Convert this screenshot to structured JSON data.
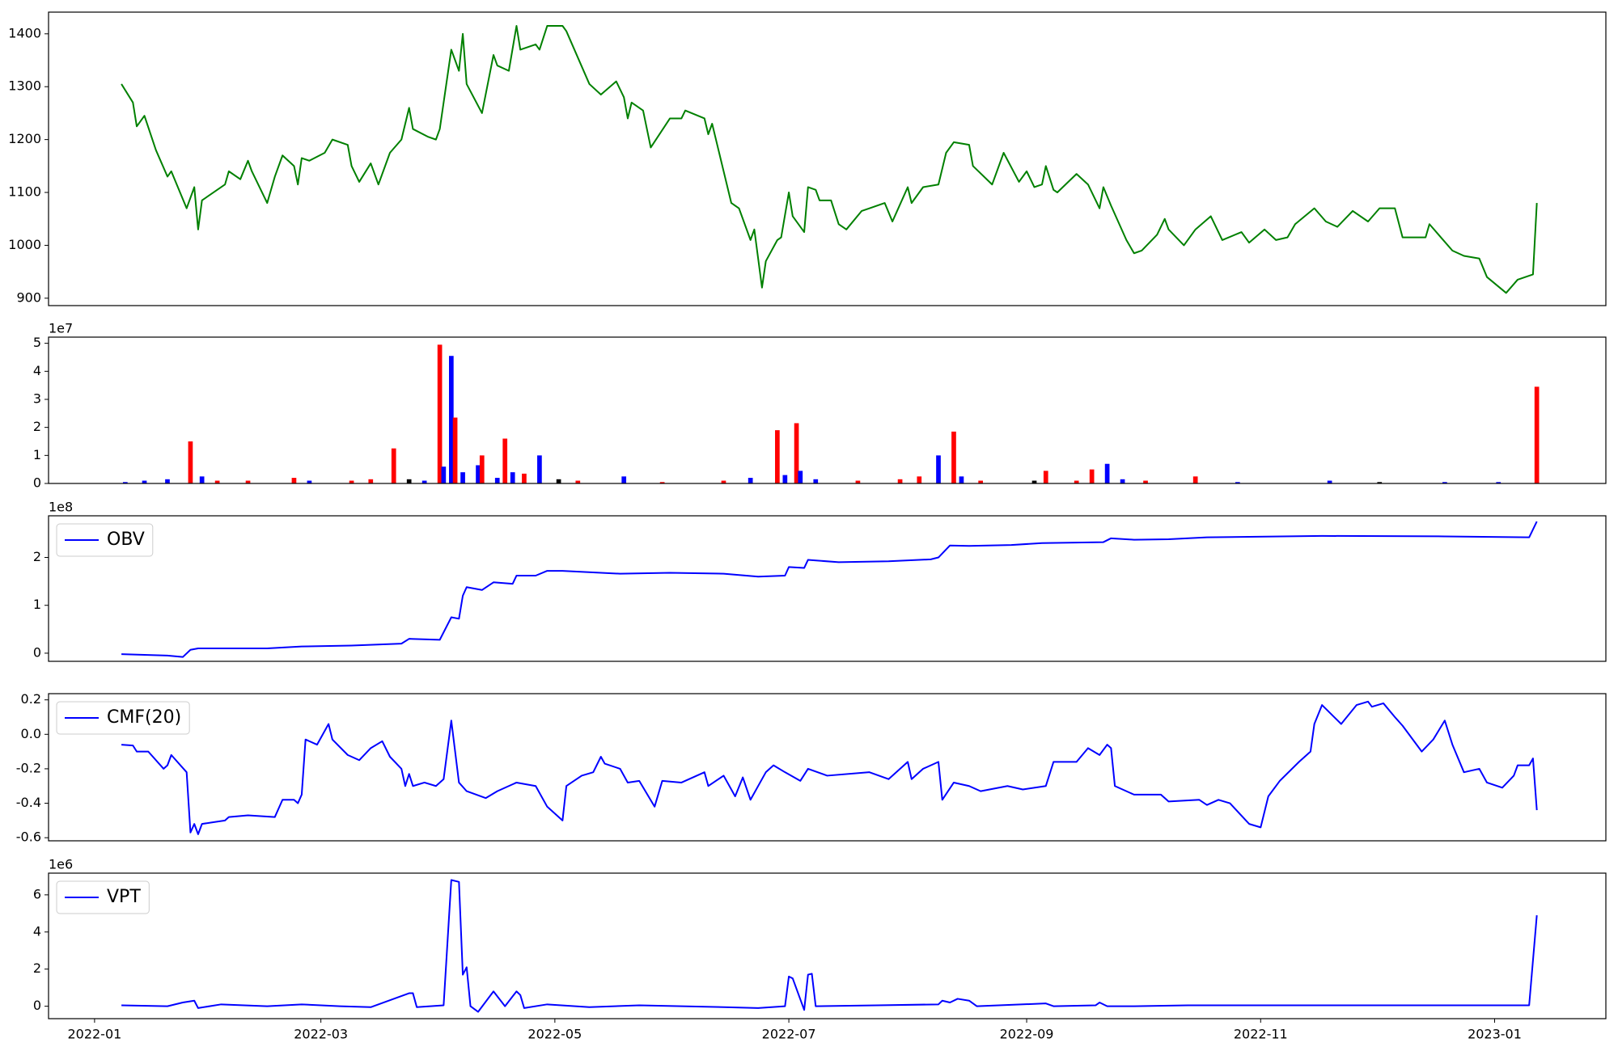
{
  "chart_data": [
    {
      "type": "line",
      "x": [
        7,
        10,
        11,
        13,
        16,
        19,
        20,
        24,
        26,
        27,
        28,
        34,
        35,
        38,
        40,
        41,
        45,
        47,
        49,
        52,
        53,
        54,
        56,
        60,
        62,
        66,
        67,
        69,
        72,
        74,
        77,
        80,
        82,
        83,
        87,
        89,
        90,
        93,
        95,
        96,
        97,
        101,
        104,
        105,
        108,
        110,
        111,
        115,
        116,
        118,
        122,
        123,
        129,
        132,
        136,
        138,
        139,
        140,
        143,
        145,
        150,
        153,
        154,
        159,
        160,
        161,
        164,
        166,
        168,
        171,
        172,
        174,
        175,
        178,
        179,
        181,
        182,
        185,
        186,
        188,
        189,
        192,
        194,
        196,
        200,
        202,
        206,
        208,
        212,
        213,
        216,
        220,
        222,
        224,
        228,
        229,
        234,
        237,
        241,
        243,
        245,
        247,
        248,
        250,
        251,
        256,
        259,
        262,
        263,
        265,
        269,
        271,
        273,
        277,
        279,
        280,
        284,
        287,
        291,
        294,
        299,
        301,
        305,
        308,
        311,
        313,
        318,
        321,
        324,
        328,
        332,
        335,
        339,
        341,
        347,
        348,
        354,
        357,
        361,
        363,
        368,
        371,
        375,
        376
      ],
      "series": [
        {
          "color": "#008000",
          "values": [
            1305,
            1270,
            1225,
            1245,
            1180,
            1130,
            1140,
            1070,
            1110,
            1030,
            1085,
            1115,
            1140,
            1125,
            1160,
            1140,
            1080,
            1130,
            1170,
            1150,
            1115,
            1165,
            1160,
            1175,
            1200,
            1190,
            1150,
            1120,
            1155,
            1115,
            1175,
            1200,
            1260,
            1220,
            1205,
            1200,
            1220,
            1370,
            1330,
            1400,
            1305,
            1250,
            1360,
            1340,
            1330,
            1415,
            1370,
            1380,
            1370,
            1415,
            1415,
            1405,
            1305,
            1285,
            1310,
            1280,
            1240,
            1270,
            1255,
            1185,
            1240,
            1240,
            1255,
            1240,
            1210,
            1230,
            1140,
            1080,
            1070,
            1010,
            1030,
            920,
            970,
            1010,
            1015,
            1100,
            1055,
            1025,
            1110,
            1105,
            1085,
            1085,
            1040,
            1030,
            1065,
            1070,
            1080,
            1045,
            1110,
            1080,
            1110,
            1115,
            1175,
            1195,
            1190,
            1150,
            1115,
            1175,
            1120,
            1140,
            1110,
            1115,
            1150,
            1105,
            1100,
            1135,
            1115,
            1070,
            1110,
            1075,
            1010,
            985,
            990,
            1020,
            1050,
            1030,
            1000,
            1030,
            1055,
            1010,
            1025,
            1005,
            1030,
            1010,
            1015,
            1040,
            1070,
            1045,
            1035,
            1065,
            1045,
            1070,
            1070,
            1015,
            1015,
            1040,
            990,
            980,
            975,
            940,
            910,
            935,
            945,
            1080
          ]
        }
      ],
      "xlim": [
        -12,
        394
      ],
      "ylim": [
        886,
        1441
      ],
      "yticks": [
        900,
        1000,
        1100,
        1200,
        1300,
        1400
      ]
    },
    {
      "type": "bar",
      "offset_label": "1e7",
      "x": [
        8,
        13,
        19,
        25,
        28,
        32,
        40,
        52,
        56,
        67,
        72,
        78,
        82,
        86,
        90,
        91,
        93,
        94,
        96,
        100,
        101,
        105,
        107,
        109,
        112,
        116,
        121,
        126,
        138,
        148,
        164,
        171,
        178,
        180,
        183,
        184,
        188,
        199,
        210,
        215,
        220,
        224,
        226,
        231,
        245,
        248,
        256,
        260,
        264,
        268,
        274,
        287,
        298,
        322,
        335,
        352,
        366,
        376
      ],
      "values": [
        0.05,
        0.1,
        0.15,
        1.5,
        0.25,
        0.1,
        0.1,
        0.2,
        0.1,
        0.1,
        0.15,
        1.25,
        0.15,
        0.1,
        4.95,
        0.6,
        4.55,
        2.35,
        0.4,
        0.65,
        1.0,
        0.2,
        1.6,
        0.4,
        0.35,
        1.0,
        0.15,
        0.1,
        0.25,
        0.05,
        0.1,
        0.2,
        1.9,
        0.3,
        2.15,
        0.45,
        0.15,
        0.1,
        0.15,
        0.25,
        1.0,
        1.85,
        0.25,
        0.1,
        0.1,
        0.45,
        0.1,
        0.5,
        0.7,
        0.15,
        0.1,
        0.25,
        0.05,
        0.1,
        0.05,
        0.05,
        0.05,
        3.45
      ],
      "colors": [
        "blue",
        "blue",
        "blue",
        "red",
        "blue",
        "red",
        "red",
        "red",
        "blue",
        "red",
        "red",
        "red",
        "black",
        "blue",
        "red",
        "blue",
        "blue",
        "red",
        "blue",
        "blue",
        "red",
        "blue",
        "red",
        "blue",
        "red",
        "blue",
        "black",
        "red",
        "blue",
        "red",
        "red",
        "blue",
        "red",
        "blue",
        "red",
        "blue",
        "blue",
        "red",
        "red",
        "red",
        "blue",
        "red",
        "blue",
        "red",
        "black",
        "red",
        "red",
        "red",
        "blue",
        "blue",
        "red",
        "red",
        "blue",
        "blue",
        "black",
        "blue",
        "blue",
        "red"
      ],
      "xlim": [
        -12,
        394
      ],
      "ylim": [
        0,
        5.22
      ],
      "yticks": [
        0,
        1,
        2,
        3,
        4,
        5
      ]
    },
    {
      "type": "line",
      "offset_label": "1e8",
      "x": [
        7,
        19,
        23,
        25,
        27,
        45,
        54,
        67,
        80,
        82,
        90,
        93,
        95,
        96,
        97,
        101,
        104,
        109,
        110,
        115,
        118,
        122,
        137,
        150,
        164,
        173,
        180,
        181,
        185,
        186,
        194,
        207,
        218,
        220,
        223,
        228,
        239,
        247,
        263,
        265,
        271,
        280,
        290,
        320,
        352,
        374,
        376
      ],
      "series": [
        {
          "name": "OBV",
          "color": "#0000ff",
          "values": [
            -0.02,
            -0.05,
            -0.08,
            0.07,
            0.1,
            0.1,
            0.14,
            0.16,
            0.2,
            0.3,
            0.28,
            0.75,
            0.72,
            1.2,
            1.38,
            1.32,
            1.48,
            1.45,
            1.62,
            1.62,
            1.72,
            1.72,
            1.66,
            1.68,
            1.66,
            1.6,
            1.62,
            1.8,
            1.78,
            1.95,
            1.9,
            1.92,
            1.96,
            2.0,
            2.25,
            2.24,
            2.26,
            2.3,
            2.32,
            2.4,
            2.37,
            2.38,
            2.42,
            2.45,
            2.44,
            2.42,
            2.75
          ]
        }
      ],
      "xlim": [
        -12,
        394
      ],
      "ylim": [
        -0.17,
        2.87
      ],
      "yticks": [
        0,
        1,
        2
      ],
      "legend": "upper left"
    },
    {
      "type": "line",
      "x": [
        7,
        10,
        11,
        14,
        18,
        19,
        20,
        24,
        25,
        26,
        27,
        28,
        34,
        35,
        40,
        47,
        49,
        52,
        53,
        54,
        55,
        58,
        61,
        62,
        66,
        69,
        72,
        75,
        77,
        80,
        81,
        82,
        83,
        86,
        89,
        91,
        93,
        95,
        97,
        102,
        105,
        110,
        115,
        118,
        122,
        123,
        127,
        130,
        132,
        133,
        137,
        139,
        142,
        146,
        148,
        153,
        159,
        160,
        164,
        167,
        169,
        171,
        175,
        177,
        180,
        184,
        186,
        191,
        202,
        207,
        212,
        213,
        216,
        220,
        221,
        224,
        228,
        231,
        238,
        242,
        248,
        250,
        256,
        259,
        262,
        264,
        265,
        266,
        271,
        278,
        280,
        288,
        290,
        293,
        296,
        301,
        304,
        306,
        309,
        314,
        317,
        318,
        320,
        325,
        329,
        332,
        333,
        336,
        339,
        341,
        346,
        349,
        352,
        354,
        357,
        361,
        363,
        367,
        370,
        371,
        374,
        375,
        376
      ],
      "series": [
        {
          "name": "CMF(20)",
          "color": "#0000ff",
          "values": [
            -0.06,
            -0.065,
            -0.1,
            -0.1,
            -0.2,
            -0.18,
            -0.12,
            -0.22,
            -0.57,
            -0.52,
            -0.58,
            -0.52,
            -0.5,
            -0.48,
            -0.47,
            -0.48,
            -0.38,
            -0.38,
            -0.4,
            -0.35,
            -0.03,
            -0.06,
            0.06,
            -0.03,
            -0.12,
            -0.15,
            -0.08,
            -0.04,
            -0.13,
            -0.2,
            -0.3,
            -0.23,
            -0.3,
            -0.28,
            -0.3,
            -0.26,
            0.08,
            -0.28,
            -0.33,
            -0.37,
            -0.33,
            -0.28,
            -0.3,
            -0.42,
            -0.5,
            -0.3,
            -0.24,
            -0.22,
            -0.13,
            -0.17,
            -0.2,
            -0.28,
            -0.27,
            -0.42,
            -0.27,
            -0.28,
            -0.22,
            -0.3,
            -0.24,
            -0.36,
            -0.25,
            -0.38,
            -0.22,
            -0.18,
            -0.22,
            -0.27,
            -0.2,
            -0.24,
            -0.22,
            -0.26,
            -0.16,
            -0.26,
            -0.2,
            -0.16,
            -0.38,
            -0.28,
            -0.3,
            -0.33,
            -0.3,
            -0.32,
            -0.3,
            -0.16,
            -0.16,
            -0.08,
            -0.12,
            -0.06,
            -0.08,
            -0.3,
            -0.35,
            -0.35,
            -0.39,
            -0.38,
            -0.41,
            -0.38,
            -0.4,
            -0.52,
            -0.54,
            -0.36,
            -0.27,
            -0.16,
            -0.1,
            0.06,
            0.17,
            0.06,
            0.17,
            0.19,
            0.16,
            0.18,
            0.1,
            0.05,
            -0.1,
            -0.03,
            0.08,
            -0.06,
            -0.22,
            -0.2,
            -0.28,
            -0.31,
            -0.24,
            -0.18,
            -0.18,
            -0.14,
            -0.44
          ]
        }
      ],
      "xlim": [
        -12,
        394
      ],
      "ylim": [
        -0.618,
        0.236
      ],
      "yticks": [
        -0.6,
        -0.4,
        -0.2,
        {
          "value": 0,
          "label": "0.0"
        },
        0.2
      ],
      "legend": "upper left"
    },
    {
      "type": "line",
      "offset_label": "1e6",
      "x": [
        7,
        19,
        23,
        26,
        27,
        33,
        45,
        54,
        64,
        72,
        82,
        83,
        84,
        91,
        93,
        95,
        96,
        97,
        98,
        100,
        104,
        107,
        110,
        111,
        112,
        118,
        129,
        142,
        164,
        173,
        180,
        181,
        182,
        185,
        186,
        187,
        188,
        204,
        220,
        221,
        223,
        225,
        228,
        230,
        248,
        250,
        261,
        262,
        264,
        271,
        285,
        325,
        374,
        376
      ],
      "series": [
        {
          "name": "VPT",
          "color": "#0000ff",
          "values": [
            0.05,
            0,
            0.2,
            0.3,
            -0.1,
            0.1,
            0,
            0.1,
            0,
            -0.05,
            0.7,
            0.7,
            -0.05,
            0.05,
            6.8,
            6.7,
            1.7,
            2.1,
            0,
            -0.3,
            0.8,
            0,
            0.8,
            0.6,
            -0.1,
            0.1,
            -0.05,
            0.05,
            -0.05,
            -0.1,
            0,
            1.6,
            1.5,
            -0.2,
            1.7,
            1.75,
            0,
            0.05,
            0.1,
            0.3,
            0.2,
            0.4,
            0.3,
            0,
            0.15,
            0,
            0.05,
            0.2,
            0,
            0,
            0.05,
            0.05,
            0.05,
            4.9
          ]
        }
      ],
      "xlim": [
        -12,
        394
      ],
      "ylim": [
        -0.67,
        7.17
      ],
      "yticks": [
        0,
        2,
        4,
        6
      ],
      "legend": "upper left",
      "xticks": [
        {
          "value": 0,
          "label": "2022-01"
        },
        {
          "value": 59,
          "label": "2022-03"
        },
        {
          "value": 120,
          "label": "2022-05"
        },
        {
          "value": 181,
          "label": "2022-07"
        },
        {
          "value": 243,
          "label": "2022-09"
        },
        {
          "value": 304,
          "label": "2022-11"
        },
        {
          "value": 365,
          "label": "2023-01"
        }
      ]
    }
  ]
}
